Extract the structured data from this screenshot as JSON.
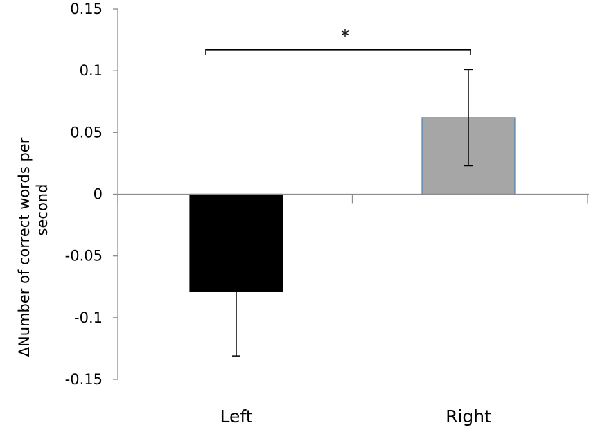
{
  "chart_data": {
    "type": "bar",
    "categories": [
      "Left",
      "Right"
    ],
    "values": [
      -0.079,
      0.062
    ],
    "error": [
      0.052,
      0.039
    ],
    "bar_colors": [
      "#000000",
      "#a6a6a6"
    ],
    "bar_edge_colors": [
      "#000000",
      "#4a7ebb"
    ],
    "xlabel": "",
    "ylabel": "ΔNumber of correct words per second",
    "ylabel_lines": [
      "ΔNumber of correct words per",
      "second"
    ],
    "ylim": [
      -0.15,
      0.15
    ],
    "yticks": [
      0.15,
      0.1,
      0.05,
      0,
      -0.05,
      -0.1,
      -0.15
    ],
    "ytick_labels": [
      "0.15",
      "0.1",
      "0.05",
      "0",
      "-0.05",
      "-0.1",
      "-0.15"
    ],
    "grid": false,
    "annotations": [
      {
        "type": "significance-bracket",
        "between": [
          "Left",
          "Right"
        ],
        "text": "*",
        "y": 0.117
      }
    ]
  }
}
